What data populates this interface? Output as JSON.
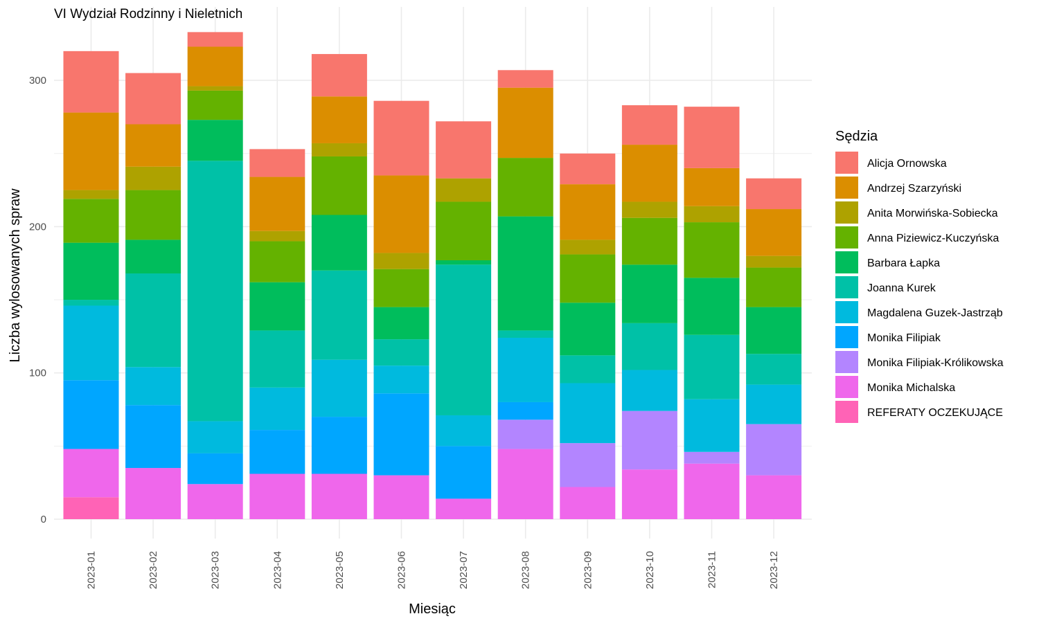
{
  "chart_data": {
    "type": "bar",
    "stacked": true,
    "title": "VI Wydział Rodzinny i Nieletnich",
    "xlabel": "Miesiąc",
    "ylabel": "Liczba wylosowanych spraw",
    "ylim": [
      0,
      340
    ],
    "yticks": [
      0,
      100,
      200,
      300
    ],
    "grid": true,
    "legend_position": "right",
    "legend_title": "Sędzia",
    "categories": [
      "2023-01",
      "2023-02",
      "2023-03",
      "2023-04",
      "2023-05",
      "2023-06",
      "2023-07",
      "2023-08",
      "2023-09",
      "2023-10",
      "2023-11",
      "2023-12"
    ],
    "series": [
      {
        "name": "Alicja Ornowska",
        "color": "#F8766D",
        "values": [
          42,
          35,
          10,
          19,
          29,
          51,
          39,
          12,
          21,
          27,
          42,
          21
        ]
      },
      {
        "name": "Andrzej Szarzyński",
        "color": "#DB8E00",
        "values": [
          53,
          29,
          27,
          37,
          32,
          53,
          0,
          48,
          38,
          39,
          26,
          32
        ]
      },
      {
        "name": "Anita Morwińska-Sobiecka",
        "color": "#AEA200",
        "values": [
          6,
          16,
          3,
          7,
          9,
          11,
          16,
          0,
          10,
          11,
          11,
          8
        ]
      },
      {
        "name": "Anna Piziewicz-Kuczyńska",
        "color": "#64B200",
        "values": [
          30,
          34,
          20,
          28,
          40,
          26,
          40,
          40,
          33,
          32,
          38,
          27
        ]
      },
      {
        "name": "Barbara Łapka",
        "color": "#00BD5C",
        "values": [
          39,
          23,
          28,
          33,
          38,
          22,
          3,
          78,
          36,
          40,
          39,
          32
        ]
      },
      {
        "name": "Joanna Kurek",
        "color": "#00C1A7",
        "values": [
          4,
          64,
          178,
          39,
          61,
          18,
          103,
          5,
          19,
          32,
          44,
          21
        ]
      },
      {
        "name": "Magdalena Guzek-Jastrząb",
        "color": "#00BADE",
        "values": [
          51,
          26,
          22,
          29,
          39,
          19,
          21,
          44,
          41,
          28,
          36,
          27
        ]
      },
      {
        "name": "Monika Filipiak",
        "color": "#00A6FF",
        "values": [
          47,
          43,
          21,
          30,
          39,
          56,
          36,
          12,
          0,
          0,
          0,
          0
        ]
      },
      {
        "name": "Monika Filipiak-Królikowska",
        "color": "#B385FF",
        "values": [
          0,
          0,
          0,
          0,
          0,
          0,
          0,
          20,
          30,
          40,
          8,
          35
        ]
      },
      {
        "name": "Monika Michalska",
        "color": "#EF67EB",
        "values": [
          33,
          35,
          24,
          31,
          31,
          30,
          14,
          48,
          22,
          34,
          38,
          30
        ]
      },
      {
        "name": "REFERATY OCZEKUJĄCE",
        "color": "#FF63B6",
        "values": [
          15,
          0,
          0,
          0,
          0,
          0,
          0,
          0,
          0,
          0,
          0,
          0
        ]
      }
    ]
  }
}
